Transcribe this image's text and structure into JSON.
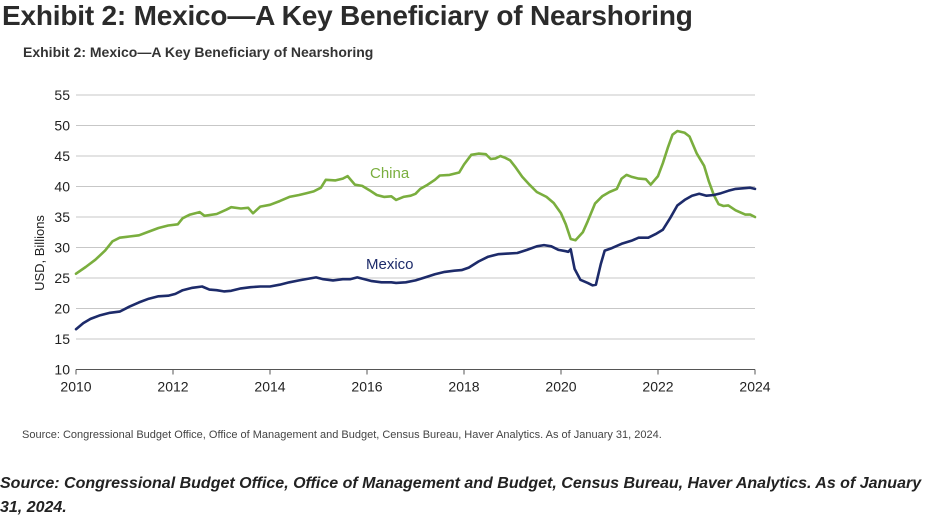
{
  "page": {
    "heading": "Exhibit 2: Mexico—A Key Beneficiary of Nearshoring",
    "source": "Source: Congressional Budget Office, Office of Management and Budget, Census Bureau, Haver Analytics. As of January 31, 2024."
  },
  "chart_data": {
    "type": "line",
    "title": "Exhibit 2: Mexico—A Key Beneficiary of Nearshoring",
    "xlabel": "",
    "ylabel": "USD, Billions",
    "xlim": [
      2010,
      2024
    ],
    "ylim": [
      10,
      55
    ],
    "x_ticks": [
      "2010",
      "2012",
      "2014",
      "2016",
      "2018",
      "2020",
      "2022",
      "2024"
    ],
    "y_ticks": [
      "55",
      "50",
      "45",
      "40",
      "35",
      "30",
      "25",
      "20",
      "15",
      "10"
    ],
    "grid": "horizontal",
    "source_note": "Source: Congressional Budget Office, Office of Management and Budget, Census Bureau, Haver Analytics. As of January 31, 2024.",
    "series": [
      {
        "name": "China",
        "color": "#7aae3e",
        "points": [
          [
            2010.0,
            25.7
          ],
          [
            2010.2,
            26.8
          ],
          [
            2010.4,
            28.0
          ],
          [
            2010.6,
            29.5
          ],
          [
            2010.75,
            31.0
          ],
          [
            2010.9,
            31.6
          ],
          [
            2011.1,
            31.8
          ],
          [
            2011.3,
            32.0
          ],
          [
            2011.5,
            32.6
          ],
          [
            2011.7,
            33.2
          ],
          [
            2011.9,
            33.6
          ],
          [
            2012.1,
            33.8
          ],
          [
            2012.2,
            34.8
          ],
          [
            2012.35,
            35.4
          ],
          [
            2012.55,
            35.8
          ],
          [
            2012.65,
            35.2
          ],
          [
            2012.9,
            35.5
          ],
          [
            2013.1,
            36.2
          ],
          [
            2013.2,
            36.6
          ],
          [
            2013.4,
            36.4
          ],
          [
            2013.55,
            36.5
          ],
          [
            2013.65,
            35.6
          ],
          [
            2013.8,
            36.7
          ],
          [
            2014.0,
            37.0
          ],
          [
            2014.2,
            37.6
          ],
          [
            2014.4,
            38.3
          ],
          [
            2014.6,
            38.6
          ],
          [
            2014.75,
            38.9
          ],
          [
            2014.9,
            39.2
          ],
          [
            2015.05,
            39.8
          ],
          [
            2015.15,
            41.1
          ],
          [
            2015.35,
            41.0
          ],
          [
            2015.5,
            41.3
          ],
          [
            2015.6,
            41.7
          ],
          [
            2015.75,
            40.3
          ],
          [
            2015.9,
            40.1
          ],
          [
            2016.05,
            39.4
          ],
          [
            2016.2,
            38.6
          ],
          [
            2016.35,
            38.3
          ],
          [
            2016.5,
            38.4
          ],
          [
            2016.6,
            37.8
          ],
          [
            2016.75,
            38.3
          ],
          [
            2016.9,
            38.5
          ],
          [
            2017.0,
            38.8
          ],
          [
            2017.1,
            39.6
          ],
          [
            2017.25,
            40.3
          ],
          [
            2017.4,
            41.1
          ],
          [
            2017.5,
            41.8
          ],
          [
            2017.7,
            41.9
          ],
          [
            2017.9,
            42.3
          ],
          [
            2018.0,
            43.6
          ],
          [
            2018.15,
            45.2
          ],
          [
            2018.3,
            45.4
          ],
          [
            2018.45,
            45.3
          ],
          [
            2018.55,
            44.5
          ],
          [
            2018.65,
            44.6
          ],
          [
            2018.75,
            45.0
          ],
          [
            2018.85,
            44.7
          ],
          [
            2018.95,
            44.3
          ],
          [
            2019.05,
            43.3
          ],
          [
            2019.2,
            41.6
          ],
          [
            2019.35,
            40.3
          ],
          [
            2019.5,
            39.1
          ],
          [
            2019.7,
            38.3
          ],
          [
            2019.85,
            37.3
          ],
          [
            2020.0,
            35.6
          ],
          [
            2020.1,
            33.8
          ],
          [
            2020.2,
            31.4
          ],
          [
            2020.3,
            31.2
          ],
          [
            2020.45,
            32.5
          ],
          [
            2020.55,
            34.3
          ],
          [
            2020.7,
            37.2
          ],
          [
            2020.85,
            38.4
          ],
          [
            2021.0,
            39.1
          ],
          [
            2021.15,
            39.6
          ],
          [
            2021.25,
            41.3
          ],
          [
            2021.35,
            41.9
          ],
          [
            2021.45,
            41.6
          ],
          [
            2021.6,
            41.3
          ],
          [
            2021.75,
            41.2
          ],
          [
            2021.85,
            40.3
          ],
          [
            2022.0,
            41.7
          ],
          [
            2022.1,
            43.8
          ],
          [
            2022.2,
            46.3
          ],
          [
            2022.3,
            48.5
          ],
          [
            2022.4,
            49.1
          ],
          [
            2022.55,
            48.8
          ],
          [
            2022.65,
            48.2
          ],
          [
            2022.8,
            45.4
          ],
          [
            2022.95,
            43.4
          ],
          [
            2023.05,
            40.8
          ],
          [
            2023.15,
            38.6
          ],
          [
            2023.25,
            37.1
          ],
          [
            2023.35,
            36.8
          ],
          [
            2023.45,
            36.9
          ],
          [
            2023.6,
            36.1
          ],
          [
            2023.8,
            35.4
          ],
          [
            2023.9,
            35.4
          ],
          [
            2024.0,
            35.0
          ]
        ]
      },
      {
        "name": "Mexico",
        "color": "#1d2b6a",
        "points": [
          [
            2010.0,
            16.6
          ],
          [
            2010.15,
            17.6
          ],
          [
            2010.3,
            18.3
          ],
          [
            2010.5,
            18.9
          ],
          [
            2010.7,
            19.3
          ],
          [
            2010.9,
            19.5
          ],
          [
            2011.1,
            20.3
          ],
          [
            2011.3,
            21.0
          ],
          [
            2011.5,
            21.6
          ],
          [
            2011.7,
            22.0
          ],
          [
            2011.9,
            22.1
          ],
          [
            2012.05,
            22.4
          ],
          [
            2012.2,
            23.0
          ],
          [
            2012.4,
            23.4
          ],
          [
            2012.6,
            23.6
          ],
          [
            2012.75,
            23.1
          ],
          [
            2012.9,
            23.0
          ],
          [
            2013.05,
            22.8
          ],
          [
            2013.2,
            22.9
          ],
          [
            2013.4,
            23.3
          ],
          [
            2013.6,
            23.5
          ],
          [
            2013.8,
            23.6
          ],
          [
            2014.0,
            23.6
          ],
          [
            2014.2,
            23.9
          ],
          [
            2014.4,
            24.3
          ],
          [
            2014.6,
            24.6
          ],
          [
            2014.8,
            24.9
          ],
          [
            2014.95,
            25.1
          ],
          [
            2015.1,
            24.8
          ],
          [
            2015.3,
            24.6
          ],
          [
            2015.5,
            24.8
          ],
          [
            2015.65,
            24.8
          ],
          [
            2015.8,
            25.1
          ],
          [
            2015.95,
            24.8
          ],
          [
            2016.1,
            24.5
          ],
          [
            2016.3,
            24.3
          ],
          [
            2016.5,
            24.3
          ],
          [
            2016.6,
            24.2
          ],
          [
            2016.8,
            24.3
          ],
          [
            2017.0,
            24.6
          ],
          [
            2017.2,
            25.1
          ],
          [
            2017.4,
            25.6
          ],
          [
            2017.6,
            26.0
          ],
          [
            2017.8,
            26.2
          ],
          [
            2017.95,
            26.3
          ],
          [
            2018.1,
            26.7
          ],
          [
            2018.3,
            27.7
          ],
          [
            2018.5,
            28.5
          ],
          [
            2018.7,
            28.9
          ],
          [
            2018.9,
            29.0
          ],
          [
            2019.1,
            29.1
          ],
          [
            2019.3,
            29.6
          ],
          [
            2019.5,
            30.2
          ],
          [
            2019.65,
            30.4
          ],
          [
            2019.8,
            30.2
          ],
          [
            2019.95,
            29.6
          ],
          [
            2020.1,
            29.4
          ],
          [
            2020.15,
            29.3
          ],
          [
            2020.2,
            29.7
          ],
          [
            2020.28,
            26.5
          ],
          [
            2020.4,
            24.7
          ],
          [
            2020.55,
            24.2
          ],
          [
            2020.65,
            23.8
          ],
          [
            2020.72,
            23.9
          ],
          [
            2020.82,
            27.3
          ],
          [
            2020.9,
            29.5
          ],
          [
            2021.05,
            29.9
          ],
          [
            2021.25,
            30.6
          ],
          [
            2021.45,
            31.1
          ],
          [
            2021.6,
            31.6
          ],
          [
            2021.8,
            31.6
          ],
          [
            2021.95,
            32.2
          ],
          [
            2022.1,
            32.9
          ],
          [
            2022.25,
            34.8
          ],
          [
            2022.4,
            36.9
          ],
          [
            2022.55,
            37.8
          ],
          [
            2022.7,
            38.5
          ],
          [
            2022.85,
            38.8
          ],
          [
            2023.0,
            38.5
          ],
          [
            2023.15,
            38.6
          ],
          [
            2023.3,
            38.9
          ],
          [
            2023.45,
            39.3
          ],
          [
            2023.6,
            39.6
          ],
          [
            2023.75,
            39.7
          ],
          [
            2023.9,
            39.8
          ],
          [
            2024.0,
            39.6
          ]
        ]
      }
    ]
  }
}
